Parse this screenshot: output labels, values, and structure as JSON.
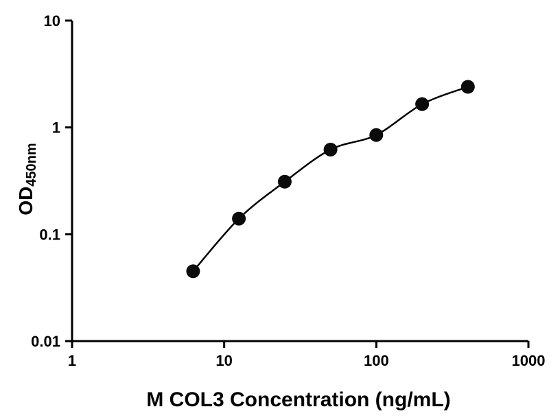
{
  "chart_data": {
    "type": "scatter",
    "title": "",
    "xlabel": "M COL3 Concentration (ng/mL)",
    "ylabel_main": "OD",
    "ylabel_sub": "450nm",
    "x": [
      6.25,
      12.5,
      25,
      50,
      100,
      200,
      400
    ],
    "y": [
      0.045,
      0.14,
      0.31,
      0.62,
      0.85,
      1.65,
      2.4
    ],
    "xscale": "log",
    "yscale": "log",
    "xlim": [
      1,
      1000
    ],
    "ylim": [
      0.01,
      10
    ],
    "x_ticks": [
      1,
      10,
      100,
      1000
    ],
    "x_tick_labels": [
      "1",
      "10",
      "100",
      "1000"
    ],
    "y_ticks": [
      0.01,
      0.1,
      1,
      10
    ],
    "y_tick_labels": [
      "0.01",
      "0.1",
      "1",
      "10"
    ],
    "has_fit_curve": true,
    "grid": false,
    "legend": null,
    "marker_color": "#0b0b0b",
    "line_color": "#000000",
    "axis_color": "#000000",
    "background_color": "#ffffff"
  }
}
